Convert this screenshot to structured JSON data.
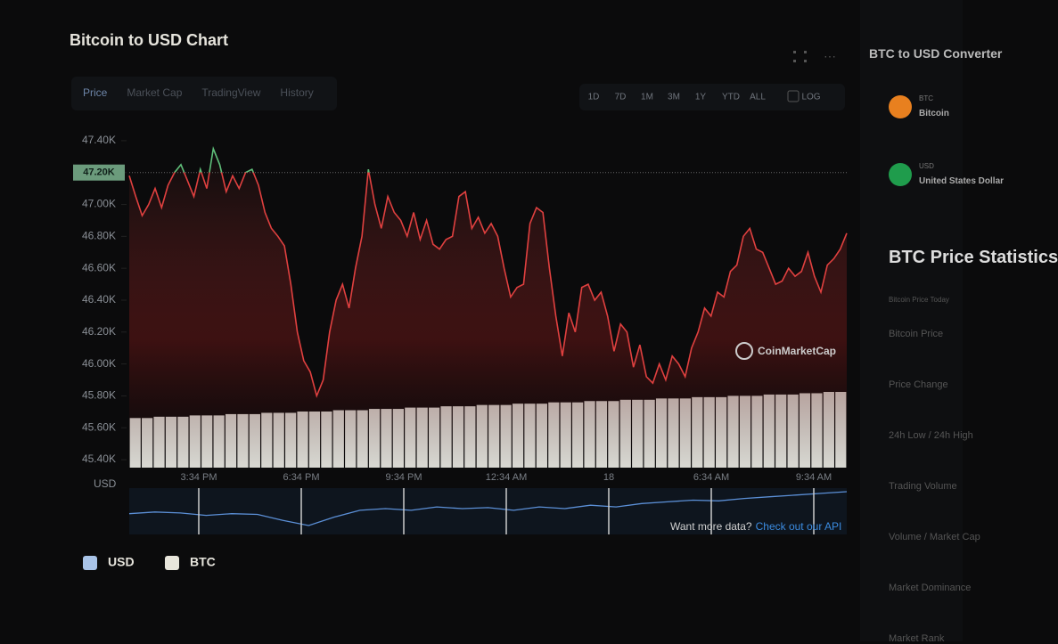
{
  "header": {
    "title": "Bitcoin to USD Chart"
  },
  "tabs": [
    "Price",
    "Market Cap",
    "TradingView",
    "History"
  ],
  "ranges": [
    "1D",
    "7D",
    "1M",
    "3M",
    "1Y",
    "YTD",
    "ALL",
    "LOG"
  ],
  "chart_data": {
    "type": "line",
    "ylabel": "USD",
    "ylim": [
      45.35,
      47.5
    ],
    "yticks": [
      {
        "value": 47.4,
        "label": "47.40K"
      },
      {
        "value": 47.2,
        "label": "47.20K"
      },
      {
        "value": 47.0,
        "label": "47.00K"
      },
      {
        "value": 46.8,
        "label": "46.80K"
      },
      {
        "value": 46.6,
        "label": "46.60K"
      },
      {
        "value": 46.4,
        "label": "46.40K"
      },
      {
        "value": 46.2,
        "label": "46.20K"
      },
      {
        "value": 46.0,
        "label": "46.00K"
      },
      {
        "value": 45.8,
        "label": "45.80K"
      },
      {
        "value": 45.6,
        "label": "45.60K"
      },
      {
        "value": 45.4,
        "label": "45.40K"
      }
    ],
    "reference": {
      "value": 47.2,
      "label": "47.20K"
    },
    "up_color": "#5fbf7a",
    "down_color": "#e0403f",
    "x_labels": [
      "3:34 PM",
      "6:34 PM",
      "9:34 PM",
      "12:34 AM",
      "18",
      "6:34 AM",
      "9:34 AM"
    ],
    "values": [
      47.18,
      47.05,
      46.93,
      47.0,
      47.1,
      46.98,
      47.12,
      47.2,
      47.25,
      47.15,
      47.05,
      47.22,
      47.1,
      47.35,
      47.25,
      47.08,
      47.18,
      47.1,
      47.2,
      47.22,
      47.12,
      46.95,
      46.85,
      46.8,
      46.74,
      46.5,
      46.2,
      46.02,
      45.95,
      45.8,
      45.9,
      46.2,
      46.4,
      46.5,
      46.35,
      46.6,
      46.8,
      47.22,
      47.0,
      46.85,
      47.05,
      46.95,
      46.9,
      46.8,
      46.95,
      46.78,
      46.9,
      46.75,
      46.72,
      46.78,
      46.8,
      47.05,
      47.08,
      46.85,
      46.92,
      46.82,
      46.88,
      46.8,
      46.6,
      46.42,
      46.48,
      46.5,
      46.88,
      46.98,
      46.95,
      46.6,
      46.3,
      46.05,
      46.32,
      46.2,
      46.48,
      46.5,
      46.4,
      46.45,
      46.3,
      46.08,
      46.25,
      46.2,
      45.98,
      46.12,
      45.92,
      45.88,
      46.0,
      45.9,
      46.05,
      46.0,
      45.92,
      46.1,
      46.2,
      46.35,
      46.3,
      46.45,
      46.42,
      46.58,
      46.62,
      46.8,
      46.85,
      46.72,
      46.7,
      46.6,
      46.5,
      46.52,
      46.6,
      46.55,
      46.58,
      46.7,
      46.55,
      46.45,
      46.62,
      46.66,
      46.72,
      46.82
    ],
    "volume": {
      "color": "#d8d8d2",
      "values": [
        38,
        38,
        39,
        39,
        39,
        40,
        40,
        40,
        41,
        41,
        41,
        42,
        42,
        42,
        43,
        43,
        43,
        44,
        44,
        44,
        45,
        45,
        45,
        46,
        46,
        46,
        47,
        47,
        47,
        48,
        48,
        48,
        49,
        49,
        49,
        50,
        50,
        50,
        51,
        51,
        51,
        52,
        52,
        52,
        53,
        53,
        53,
        54,
        54,
        54,
        55,
        55,
        55,
        56,
        56,
        56,
        57,
        57,
        58,
        58
      ]
    },
    "overview": {
      "color": "#5b8fd6",
      "values": [
        45.9,
        45.95,
        45.92,
        45.85,
        45.9,
        45.88,
        45.7,
        45.55,
        45.8,
        46.0,
        46.05,
        46.0,
        46.1,
        46.05,
        46.08,
        46.0,
        46.1,
        46.05,
        46.15,
        46.1,
        46.2,
        46.25,
        46.3,
        46.28,
        46.35,
        46.4,
        46.45,
        46.5,
        46.55
      ]
    },
    "legend": [
      {
        "name": "USD",
        "color": "#a9c4e8"
      },
      {
        "name": "BTC",
        "color": "#e8e6dc"
      }
    ],
    "watermark": "CoinMarketCap"
  },
  "footer": {
    "prompt": "Want more data?",
    "link": "Check out our API"
  },
  "side": {
    "converter_title": "BTC to USD Converter",
    "from": {
      "code": "BTC",
      "name": "Bitcoin"
    },
    "to": {
      "code": "USD",
      "name": "United States Dollar"
    },
    "stats_title": "BTC Price Statistics",
    "stats": [
      "Bitcoin Price Today",
      "Bitcoin Price",
      "Price Change",
      "24h Low / 24h High",
      "Trading Volume",
      "Volume / Market Cap",
      "Market Dominance",
      "Market Rank"
    ]
  }
}
